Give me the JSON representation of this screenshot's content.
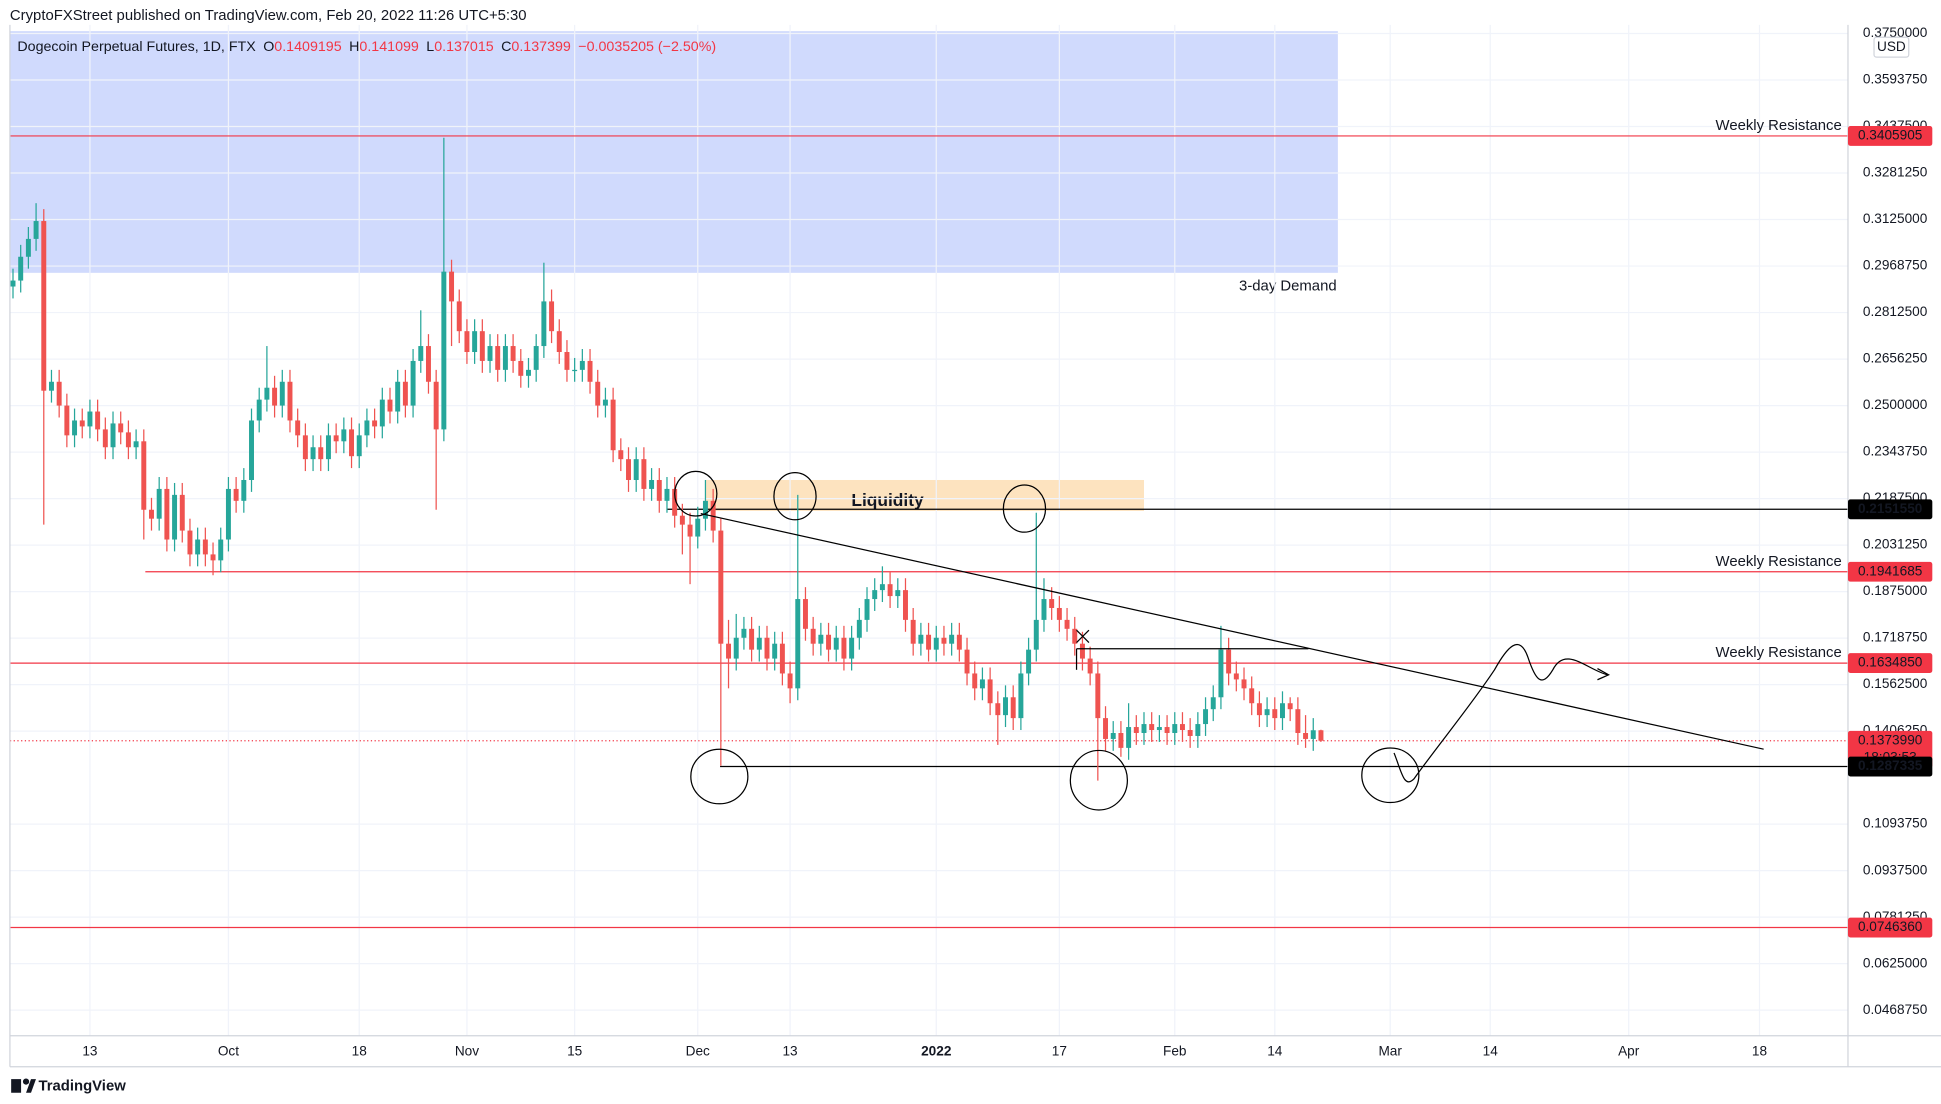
{
  "chart_data": {
    "type": "candlestick",
    "header": "CryptoFXStreet published on TradingView.com, Feb 20, 2022 11:26 UTC+5:30",
    "title": "Dogecoin Perpetual Futures, 1D, FTX",
    "ohlc_labels": [
      "O",
      "H",
      "L",
      "C"
    ],
    "change": "−0.0035205 (−2.50%)",
    "currency": "USD",
    "brand": "TradingView",
    "up_color": "#26a69a",
    "down_color": "#ef5350",
    "open": [
      0.29,
      0.292,
      0.3,
      0.306,
      0.312,
      0.255,
      0.258,
      0.25,
      0.24,
      0.245,
      0.243,
      0.248,
      0.242,
      0.236,
      0.244,
      0.241,
      0.236,
      0.238,
      0.215,
      0.212,
      0.222,
      0.205,
      0.22,
      0.208,
      0.2,
      0.205,
      0.2,
      0.198,
      0.205,
      0.222,
      0.218,
      0.225,
      0.245,
      0.252,
      0.256,
      0.25,
      0.258,
      0.245,
      0.24,
      0.232,
      0.236,
      0.232,
      0.24,
      0.238,
      0.242,
      0.233,
      0.24,
      0.245,
      0.243,
      0.252,
      0.248,
      0.258,
      0.25,
      0.265,
      0.27,
      0.258,
      0.242,
      0.295,
      0.285,
      0.275,
      0.268,
      0.275,
      0.265,
      0.27,
      0.262,
      0.27,
      0.265,
      0.26,
      0.262,
      0.27,
      0.285,
      0.275,
      0.268,
      0.262,
      0.262,
      0.265,
      0.258,
      0.25,
      0.252,
      0.235,
      0.232,
      0.225,
      0.232,
      0.222,
      0.225,
      0.218,
      0.222,
      0.213,
      0.21,
      0.206,
      0.212,
      0.218,
      0.208,
      0.17,
      0.165,
      0.172,
      0.175,
      0.168,
      0.172,
      0.165,
      0.17,
      0.16,
      0.155,
      0.185,
      0.175,
      0.17,
      0.173,
      0.168,
      0.172,
      0.165,
      0.172,
      0.178,
      0.185,
      0.188,
      0.19,
      0.186,
      0.188,
      0.178,
      0.17,
      0.173,
      0.168,
      0.172,
      0.17,
      0.173,
      0.168,
      0.16,
      0.155,
      0.158,
      0.15,
      0.146,
      0.152,
      0.145,
      0.16,
      0.168,
      0.178,
      0.185,
      0.182,
      0.178,
      0.175,
      0.17,
      0.165,
      0.16,
      0.145,
      0.138,
      0.14,
      0.135,
      0.142,
      0.14,
      0.143,
      0.141,
      0.142,
      0.14,
      0.143,
      0.141,
      0.139,
      0.143,
      0.148,
      0.152,
      0.168,
      0.16,
      0.158,
      0.155,
      0.15,
      0.146,
      0.148,
      0.145,
      0.15,
      0.148,
      0.14,
      0.138,
      0.1409195
    ],
    "high": [
      0.296,
      0.304,
      0.31,
      0.318,
      0.316,
      0.262,
      0.262,
      0.254,
      0.249,
      0.249,
      0.252,
      0.252,
      0.246,
      0.248,
      0.248,
      0.245,
      0.242,
      0.242,
      0.219,
      0.226,
      0.226,
      0.224,
      0.224,
      0.212,
      0.209,
      0.209,
      0.204,
      0.209,
      0.226,
      0.226,
      0.229,
      0.249,
      0.256,
      0.27,
      0.26,
      0.262,
      0.262,
      0.249,
      0.244,
      0.24,
      0.24,
      0.244,
      0.244,
      0.246,
      0.246,
      0.244,
      0.249,
      0.249,
      0.256,
      0.256,
      0.262,
      0.262,
      0.269,
      0.282,
      0.274,
      0.262,
      0.34,
      0.299,
      0.289,
      0.279,
      0.279,
      0.279,
      0.274,
      0.274,
      0.274,
      0.274,
      0.269,
      0.266,
      0.274,
      0.298,
      0.289,
      0.279,
      0.272,
      0.266,
      0.269,
      0.269,
      0.262,
      0.256,
      0.256,
      0.239,
      0.236,
      0.236,
      0.236,
      0.229,
      0.229,
      0.226,
      0.226,
      0.217,
      0.214,
      0.216,
      0.225,
      0.222,
      0.212,
      0.178,
      0.18,
      0.179,
      0.179,
      0.176,
      0.176,
      0.174,
      0.174,
      0.164,
      0.22,
      0.189,
      0.179,
      0.177,
      0.177,
      0.176,
      0.176,
      0.176,
      0.182,
      0.189,
      0.192,
      0.196,
      0.194,
      0.192,
      0.192,
      0.182,
      0.177,
      0.177,
      0.176,
      0.176,
      0.177,
      0.177,
      0.172,
      0.164,
      0.162,
      0.162,
      0.154,
      0.156,
      0.156,
      0.164,
      0.172,
      0.214,
      0.192,
      0.189,
      0.186,
      0.182,
      0.179,
      0.174,
      0.169,
      0.164,
      0.149,
      0.144,
      0.144,
      0.15,
      0.146,
      0.147,
      0.147,
      0.146,
      0.146,
      0.147,
      0.147,
      0.145,
      0.147,
      0.152,
      0.156,
      0.176,
      0.172,
      0.164,
      0.162,
      0.159,
      0.154,
      0.152,
      0.152,
      0.154,
      0.152,
      0.152,
      0.146,
      0.145,
      0.141099
    ],
    "low": [
      0.286,
      0.288,
      0.296,
      0.302,
      0.21,
      0.251,
      0.246,
      0.236,
      0.236,
      0.239,
      0.239,
      0.238,
      0.232,
      0.232,
      0.237,
      0.232,
      0.232,
      0.205,
      0.208,
      0.208,
      0.201,
      0.201,
      0.204,
      0.196,
      0.196,
      0.196,
      0.193,
      0.194,
      0.201,
      0.214,
      0.214,
      0.221,
      0.241,
      0.248,
      0.246,
      0.246,
      0.241,
      0.236,
      0.228,
      0.228,
      0.228,
      0.228,
      0.234,
      0.234,
      0.229,
      0.229,
      0.236,
      0.239,
      0.239,
      0.244,
      0.244,
      0.246,
      0.246,
      0.261,
      0.254,
      0.215,
      0.238,
      0.27,
      0.271,
      0.264,
      0.264,
      0.261,
      0.261,
      0.258,
      0.258,
      0.261,
      0.256,
      0.256,
      0.258,
      0.266,
      0.271,
      0.264,
      0.258,
      0.258,
      0.258,
      0.254,
      0.246,
      0.246,
      0.231,
      0.228,
      0.221,
      0.221,
      0.218,
      0.218,
      0.214,
      0.214,
      0.209,
      0.2,
      0.19,
      0.202,
      0.208,
      0.204,
      0.129,
      0.155,
      0.161,
      0.168,
      0.164,
      0.164,
      0.161,
      0.161,
      0.156,
      0.15,
      0.151,
      0.171,
      0.166,
      0.166,
      0.164,
      0.164,
      0.161,
      0.161,
      0.168,
      0.174,
      0.181,
      0.184,
      0.182,
      0.182,
      0.174,
      0.166,
      0.166,
      0.164,
      0.164,
      0.166,
      0.166,
      0.164,
      0.156,
      0.151,
      0.151,
      0.146,
      0.136,
      0.142,
      0.141,
      0.141,
      0.156,
      0.164,
      0.174,
      0.178,
      0.174,
      0.171,
      0.166,
      0.161,
      0.156,
      0.124,
      0.134,
      0.134,
      0.132,
      0.131,
      0.136,
      0.136,
      0.137,
      0.137,
      0.136,
      0.136,
      0.137,
      0.135,
      0.135,
      0.139,
      0.144,
      0.148,
      0.156,
      0.154,
      0.151,
      0.146,
      0.142,
      0.142,
      0.141,
      0.141,
      0.144,
      0.136,
      0.135,
      0.134,
      0.137015
    ],
    "close": [
      0.292,
      0.3,
      0.306,
      0.312,
      0.255,
      0.258,
      0.25,
      0.24,
      0.245,
      0.243,
      0.248,
      0.242,
      0.236,
      0.244,
      0.241,
      0.236,
      0.238,
      0.215,
      0.212,
      0.222,
      0.205,
      0.22,
      0.208,
      0.2,
      0.205,
      0.2,
      0.198,
      0.205,
      0.222,
      0.218,
      0.225,
      0.245,
      0.252,
      0.256,
      0.25,
      0.258,
      0.245,
      0.24,
      0.232,
      0.236,
      0.232,
      0.24,
      0.238,
      0.242,
      0.233,
      0.24,
      0.245,
      0.243,
      0.252,
      0.248,
      0.258,
      0.25,
      0.265,
      0.27,
      0.258,
      0.242,
      0.295,
      0.285,
      0.275,
      0.268,
      0.275,
      0.265,
      0.27,
      0.262,
      0.27,
      0.265,
      0.26,
      0.262,
      0.27,
      0.285,
      0.275,
      0.268,
      0.262,
      0.262,
      0.265,
      0.258,
      0.25,
      0.252,
      0.235,
      0.232,
      0.225,
      0.232,
      0.222,
      0.225,
      0.218,
      0.222,
      0.213,
      0.21,
      0.206,
      0.212,
      0.218,
      0.208,
      0.17,
      0.165,
      0.172,
      0.175,
      0.168,
      0.172,
      0.165,
      0.17,
      0.16,
      0.155,
      0.185,
      0.175,
      0.17,
      0.173,
      0.168,
      0.172,
      0.165,
      0.172,
      0.178,
      0.185,
      0.188,
      0.19,
      0.186,
      0.188,
      0.178,
      0.17,
      0.173,
      0.168,
      0.172,
      0.17,
      0.173,
      0.168,
      0.16,
      0.155,
      0.158,
      0.15,
      0.146,
      0.152,
      0.145,
      0.16,
      0.168,
      0.178,
      0.185,
      0.182,
      0.178,
      0.175,
      0.17,
      0.165,
      0.16,
      0.145,
      0.138,
      0.14,
      0.135,
      0.142,
      0.14,
      0.143,
      0.141,
      0.142,
      0.14,
      0.143,
      0.141,
      0.139,
      0.143,
      0.148,
      0.152,
      0.168,
      0.16,
      0.158,
      0.155,
      0.15,
      0.146,
      0.148,
      0.145,
      0.15,
      0.148,
      0.14,
      0.138,
      0.1409195,
      0.137399
    ],
    "xlim": [
      -0.4,
      238.5
    ],
    "xticks": [
      {
        "value": 10,
        "label": "13"
      },
      {
        "value": 28,
        "label": "Oct"
      },
      {
        "value": 45,
        "label": "18"
      },
      {
        "value": 59,
        "label": "Nov"
      },
      {
        "value": 73,
        "label": "15"
      },
      {
        "value": 89,
        "label": "Dec"
      },
      {
        "value": 101,
        "label": "13"
      },
      {
        "value": 120,
        "label": "2022"
      },
      {
        "value": 136,
        "label": "17"
      },
      {
        "value": 151,
        "label": "Feb"
      },
      {
        "value": 164,
        "label": "14"
      },
      {
        "value": 179,
        "label": "Mar"
      },
      {
        "value": 192,
        "label": "14"
      },
      {
        "value": 210,
        "label": "Apr"
      },
      {
        "value": 227,
        "label": "18"
      }
    ],
    "ylim": [
      0.0383,
      0.3779
    ],
    "yticks": [
      {
        "value": 0.046875,
        "label": "0.0468750"
      },
      {
        "value": 0.0625,
        "label": "0.0625000"
      },
      {
        "value": 0.078125,
        "label": "0.0781250"
      },
      {
        "value": 0.09375,
        "label": "0.0937500"
      },
      {
        "value": 0.109375,
        "label": "0.1093750"
      },
      {
        "value": 0.140625,
        "label": "0.1406250"
      },
      {
        "value": 0.15625,
        "label": "0.1562500"
      },
      {
        "value": 0.171875,
        "label": "0.1718750"
      },
      {
        "value": 0.1875,
        "label": "0.1875000"
      },
      {
        "value": 0.203125,
        "label": "0.2031250"
      },
      {
        "value": 0.21875,
        "label": "0.2187500"
      },
      {
        "value": 0.234375,
        "label": "0.2343750"
      },
      {
        "value": 0.25,
        "label": "0.2500000"
      },
      {
        "value": 0.265625,
        "label": "0.2656250"
      },
      {
        "value": 0.28125,
        "label": "0.2812500"
      },
      {
        "value": 0.296875,
        "label": "0.2968750"
      },
      {
        "value": 0.3125,
        "label": "0.3125000"
      },
      {
        "value": 0.328125,
        "label": "0.3281250"
      },
      {
        "value": 0.34375,
        "label": "0.3437500"
      },
      {
        "value": 0.359375,
        "label": "0.3593750"
      },
      {
        "value": 0.375,
        "label": "0.3750000"
      }
    ],
    "grid": true,
    "levels": [
      {
        "value": 0.3405905,
        "price_label": "0.3405905",
        "text": "Weekly Resistance",
        "color": "#f23645"
      },
      {
        "value": 0.215155,
        "price_label": "0.2151550",
        "color": "#000000"
      },
      {
        "value": 0.1941685,
        "price_label": "0.1941685",
        "text": "Weekly Resistance",
        "color": "#f23645"
      },
      {
        "value": 0.163485,
        "price_label": "0.1634850",
        "text": "Weekly Resistance",
        "color": "#f23645"
      },
      {
        "value": 0.137399,
        "price_label": "0.1373990",
        "countdown": "18:03:53",
        "color": "#f23645",
        "dotted": true
      },
      {
        "value": 0.1287335,
        "price_label": "0.1287335",
        "color": "#000000"
      },
      {
        "value": 0.074636,
        "price_label": "0.0746360",
        "color": "#f23645"
      }
    ],
    "zones": [
      {
        "label": "3-day Demand",
        "range": [
          0.2946,
          0.3758
        ],
        "color": "#d0dafd",
        "text_color": "#9c27b0"
      },
      {
        "label": "Liquidity",
        "range": [
          0.2146,
          0.225
        ],
        "color": "#fde3bf",
        "text_color": "#131722"
      }
    ]
  }
}
